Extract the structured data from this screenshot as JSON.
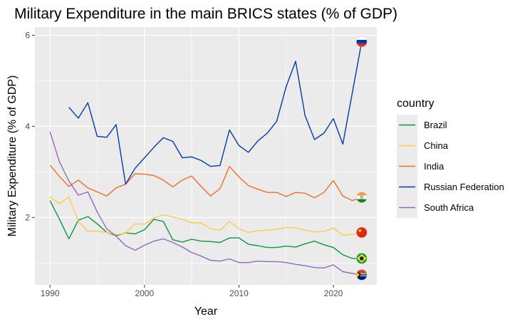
{
  "chart_data": {
    "type": "line",
    "title": "Military Expenditure in the main BRICS states (% of GDP)",
    "xlabel": "Year",
    "ylabel": "Military Expenditure (% of GDP)",
    "xlim": [
      1988.4,
      2024.6
    ],
    "ylim": [
      0.52,
      6.18
    ],
    "x_ticks": [
      1990,
      2000,
      2010,
      2020
    ],
    "y_ticks": [
      2,
      4,
      6
    ],
    "grid": true,
    "legend_position": "right",
    "legend_title": "country",
    "series": [
      {
        "name": "Brazil",
        "color": "#0e9445",
        "x": [
          1990,
          1991,
          1992,
          1993,
          1994,
          1995,
          1996,
          1997,
          1998,
          1999,
          2000,
          2001,
          2002,
          2003,
          2004,
          2005,
          2006,
          2007,
          2008,
          2009,
          2010,
          2011,
          2012,
          2013,
          2014,
          2015,
          2016,
          2017,
          2018,
          2019,
          2020,
          2021,
          2022,
          2023
        ],
        "values": [
          2.37,
          1.96,
          1.53,
          1.94,
          2.02,
          1.86,
          1.67,
          1.6,
          1.66,
          1.64,
          1.73,
          1.96,
          1.91,
          1.51,
          1.46,
          1.52,
          1.48,
          1.47,
          1.45,
          1.55,
          1.55,
          1.41,
          1.38,
          1.34,
          1.34,
          1.37,
          1.35,
          1.42,
          1.48,
          1.4,
          1.34,
          1.18,
          1.1,
          1.1
        ]
      },
      {
        "name": "China",
        "color": "#ffc94c",
        "x": [
          1990,
          1991,
          1992,
          1993,
          1994,
          1995,
          1996,
          1997,
          1998,
          1999,
          2000,
          2001,
          2002,
          2003,
          2004,
          2005,
          2006,
          2007,
          2008,
          2009,
          2010,
          2011,
          2012,
          2013,
          2014,
          2015,
          2016,
          2017,
          2018,
          2019,
          2020,
          2021,
          2022,
          2023
        ],
        "values": [
          2.45,
          2.3,
          2.45,
          1.92,
          1.7,
          1.7,
          1.67,
          1.62,
          1.65,
          1.86,
          1.85,
          1.99,
          2.06,
          2.01,
          1.96,
          1.88,
          1.88,
          1.75,
          1.72,
          1.91,
          1.75,
          1.67,
          1.71,
          1.72,
          1.74,
          1.78,
          1.77,
          1.72,
          1.68,
          1.69,
          1.77,
          1.61,
          1.63,
          1.67
        ]
      },
      {
        "name": "India",
        "color": "#f36c2b",
        "x": [
          1990,
          1991,
          1992,
          1993,
          1994,
          1995,
          1996,
          1997,
          1998,
          1999,
          2000,
          2001,
          2002,
          2003,
          2004,
          2005,
          2006,
          2007,
          2008,
          2009,
          2010,
          2011,
          2012,
          2013,
          2014,
          2015,
          2016,
          2017,
          2018,
          2019,
          2020,
          2021,
          2022,
          2023
        ],
        "values": [
          3.15,
          2.9,
          2.68,
          2.82,
          2.65,
          2.56,
          2.47,
          2.65,
          2.73,
          2.96,
          2.95,
          2.92,
          2.82,
          2.67,
          2.82,
          2.91,
          2.68,
          2.47,
          2.63,
          3.12,
          2.89,
          2.7,
          2.62,
          2.55,
          2.55,
          2.46,
          2.55,
          2.53,
          2.43,
          2.55,
          2.81,
          2.47,
          2.37,
          2.44
        ]
      },
      {
        "name": "Russian Federation",
        "color": "#003da5",
        "x": [
          1992,
          1993,
          1994,
          1995,
          1996,
          1997,
          1998,
          1999,
          2000,
          2001,
          2002,
          2003,
          2004,
          2005,
          2006,
          2007,
          2008,
          2009,
          2010,
          2011,
          2012,
          2013,
          2014,
          2015,
          2016,
          2017,
          2018,
          2019,
          2020,
          2021,
          2022,
          2023
        ],
        "values": [
          4.42,
          4.18,
          4.52,
          3.78,
          3.76,
          4.04,
          2.73,
          3.08,
          3.31,
          3.54,
          3.75,
          3.67,
          3.31,
          3.33,
          3.25,
          3.12,
          3.14,
          3.92,
          3.58,
          3.43,
          3.68,
          3.85,
          4.11,
          4.87,
          5.43,
          4.24,
          3.71,
          3.85,
          4.17,
          3.61,
          4.73,
          5.86
        ]
      },
      {
        "name": "South Africa",
        "color": "#9467bd",
        "x": [
          1990,
          1991,
          1992,
          1993,
          1994,
          1995,
          1996,
          1997,
          1998,
          1999,
          2000,
          2001,
          2002,
          2003,
          2004,
          2005,
          2006,
          2007,
          2008,
          2009,
          2010,
          2011,
          2012,
          2013,
          2014,
          2015,
          2016,
          2017,
          2018,
          2019,
          2020,
          2021,
          2022,
          2023
        ],
        "values": [
          3.88,
          3.22,
          2.8,
          2.49,
          2.56,
          2.12,
          1.75,
          1.59,
          1.38,
          1.28,
          1.39,
          1.48,
          1.53,
          1.45,
          1.35,
          1.23,
          1.15,
          1.06,
          1.04,
          1.09,
          1.01,
          1.01,
          1.04,
          1.03,
          1.03,
          1.01,
          0.97,
          0.94,
          0.9,
          0.89,
          0.96,
          0.81,
          0.77,
          0.74
        ]
      }
    ],
    "end_markers": [
      {
        "name": "Russian Federation",
        "icon": "russia-flag-icon",
        "x": 2023,
        "value": 5.86
      },
      {
        "name": "India",
        "icon": "india-flag-icon",
        "x": 2023,
        "value": 2.44
      },
      {
        "name": "China",
        "icon": "china-flag-icon",
        "x": 2023,
        "value": 1.67
      },
      {
        "name": "Brazil",
        "icon": "brazil-flag-icon",
        "x": 2023,
        "value": 1.1
      },
      {
        "name": "South Africa",
        "icon": "south-africa-flag-icon",
        "x": 2023,
        "value": 0.74
      }
    ],
    "panel_background": "#ebebeb",
    "grid_color": "#ffffff"
  }
}
